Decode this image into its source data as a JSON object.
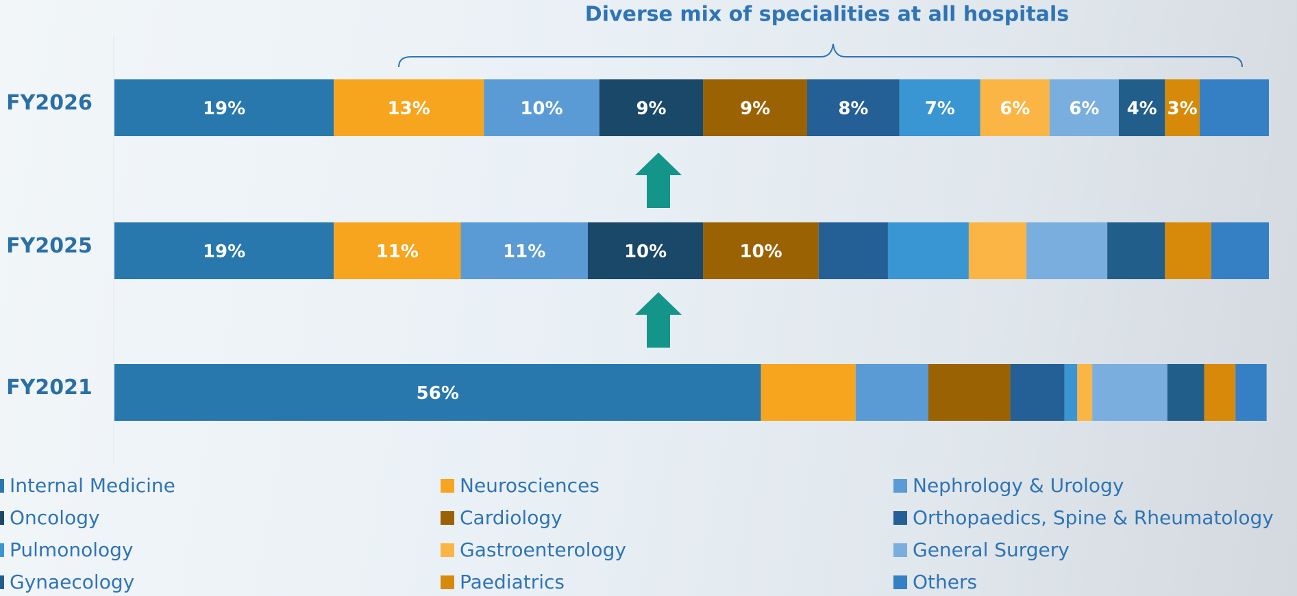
{
  "chart_data": {
    "type": "stacked-bar-horizontal",
    "title": "Diverse mix of specialities at all hospitals",
    "categories": [
      "FY2026",
      "FY2025",
      "FY2021"
    ],
    "xlim": [
      0,
      100
    ],
    "series": [
      {
        "name": "Internal Medicine",
        "color": "#2878ad",
        "values": [
          19,
          19,
          56
        ],
        "value_labels": [
          "19%",
          "19%",
          "56%"
        ]
      },
      {
        "name": "Neurosciences",
        "color": "#f7a51f",
        "values": [
          13,
          11,
          8.2
        ],
        "value_labels": [
          "13%",
          "11%",
          null
        ]
      },
      {
        "name": "Nephrology & Urology",
        "color": "#5b9bd5",
        "values": [
          10,
          11,
          6.3
        ],
        "value_labels": [
          "10%",
          "11%",
          null
        ]
      },
      {
        "name": "Oncology",
        "color": "#1a4868",
        "values": [
          9,
          10,
          0
        ],
        "value_labels": [
          "9%",
          "10%",
          null
        ]
      },
      {
        "name": "Cardiology",
        "color": "#9b6204",
        "values": [
          9,
          10,
          7.1
        ],
        "value_labels": [
          "9%",
          "10%",
          null
        ]
      },
      {
        "name": "Orthopaedics, Spine & Rheumatology",
        "color": "#245f95",
        "values": [
          8,
          6,
          4.7
        ],
        "value_labels": [
          "8%",
          null,
          null
        ]
      },
      {
        "name": "Pulmonology",
        "color": "#3a95d3",
        "values": [
          7,
          7,
          1.1
        ],
        "value_labels": [
          "7%",
          null,
          null
        ]
      },
      {
        "name": "Gastroenterology",
        "color": "#fbb545",
        "values": [
          6,
          5,
          1.3
        ],
        "value_labels": [
          "6%",
          null,
          null
        ]
      },
      {
        "name": "General Surgery",
        "color": "#7aaede",
        "values": [
          6,
          7,
          6.5
        ],
        "value_labels": [
          "6%",
          null,
          null
        ]
      },
      {
        "name": "Gynaecology",
        "color": "#215f8a",
        "values": [
          4,
          5,
          3.2
        ],
        "value_labels": [
          "4%",
          null,
          null
        ]
      },
      {
        "name": "Paediatrics",
        "color": "#d78a0a",
        "values": [
          3,
          4,
          2.7
        ],
        "value_labels": [
          "3%",
          null,
          null
        ]
      },
      {
        "name": "Others",
        "color": "#3580c4",
        "values": [
          6,
          5,
          2.7
        ],
        "value_labels": [
          null,
          null,
          null
        ]
      }
    ]
  }
}
